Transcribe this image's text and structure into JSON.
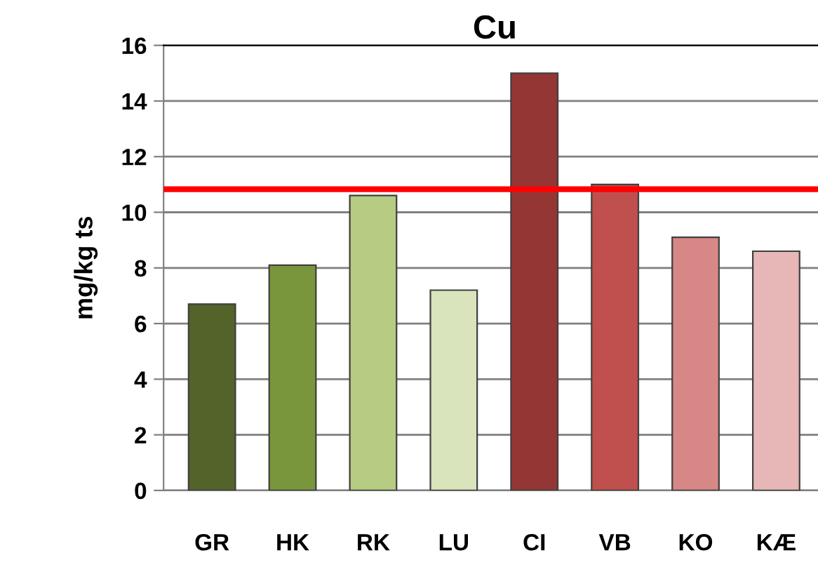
{
  "chart_data": {
    "type": "bar",
    "title": "Cu",
    "ylabel": "mg/kg ts",
    "categories": [
      "GR",
      "HK",
      "RK",
      "LU",
      "CI",
      "VB",
      "KO",
      "KÆ"
    ],
    "values": [
      6.7,
      8.1,
      10.6,
      7.2,
      15.0,
      11.0,
      9.1,
      8.6
    ],
    "colors": [
      "#536329",
      "#7a963c",
      "#b5cc82",
      "#d9e4bd",
      "#943634",
      "#c0504d",
      "#d78785",
      "#e6b7b6"
    ],
    "ylim": [
      0,
      16
    ],
    "yticks": [
      0,
      2,
      4,
      6,
      8,
      10,
      12,
      14,
      16
    ],
    "grid": "y",
    "ref_lines": [
      {
        "axis": "y",
        "value": 10.83,
        "color": "#ff0000",
        "line_style": "solid"
      }
    ]
  }
}
